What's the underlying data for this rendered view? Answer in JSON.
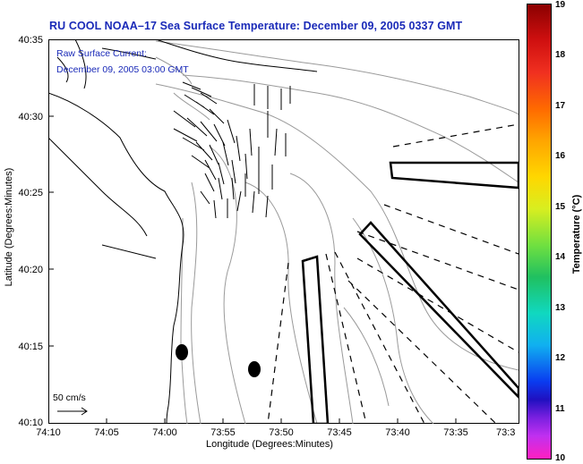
{
  "title": "RU COOL  NOAA–17  Sea Surface Temperature:  December 09, 2005 0337 GMT",
  "annotation": {
    "line1": "Raw Surface Current:",
    "line2": "December 09, 2005 03:00 GMT"
  },
  "scale_label": "50 cm/s",
  "axes": {
    "xlabel": "Longitude (Degrees:Minutes)",
    "ylabel": "Latitude (Degrees:Minutes)",
    "y_ticks": [
      "40:35",
      "40:30",
      "40:25",
      "40:20",
      "40:15",
      "40:10"
    ],
    "x_ticks": [
      "74:10",
      "74:05",
      "74:00",
      "73:55",
      "73:50",
      "73:45",
      "73:40",
      "73:35",
      "73:3"
    ]
  },
  "colorbar": {
    "label": "Temperature (°C)",
    "ticks": [
      "19",
      "18",
      "17",
      "16",
      "15",
      "14",
      "13",
      "12",
      "11",
      "10"
    ],
    "colors": {
      "top": "#8b0000",
      "bottom": "#ff20c0"
    }
  },
  "colors": {
    "title": "#1a2ab8",
    "annotation": "#1a2ab8"
  }
}
